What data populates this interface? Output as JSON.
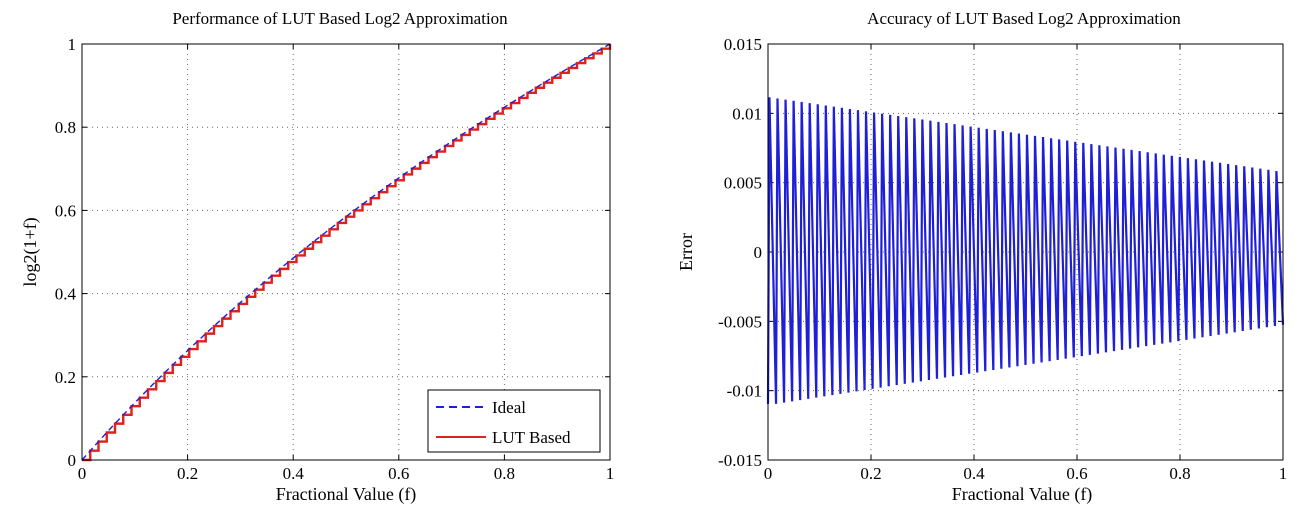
{
  "chart_data": [
    {
      "type": "line",
      "title": "Performance of LUT Based Log2 Approximation",
      "xlabel": "Fractional Value (f)",
      "ylabel": "log2(1+f)",
      "xlim": [
        0,
        1
      ],
      "ylim": [
        0,
        1
      ],
      "x_ticks": [
        0,
        0.2,
        0.4,
        0.6,
        0.8,
        1
      ],
      "x_tick_labels": [
        "0",
        "0.2",
        "0.4",
        "0.6",
        "0.8",
        "1"
      ],
      "y_ticks": [
        0,
        0.2,
        0.4,
        0.6,
        0.8,
        1
      ],
      "y_tick_labels": [
        "0",
        "0.2",
        "0.4",
        "0.6",
        "0.8",
        "1"
      ],
      "grid": true,
      "legend_position": "bottom-right",
      "series": [
        {
          "name": "Ideal",
          "style": "dashed",
          "color": "#1f1fd6",
          "function": "log2(1+f)"
        },
        {
          "name": "LUT Based",
          "style": "solid",
          "color": "#e0201a",
          "function": "step-wise log2(1+f)",
          "steps": 64
        }
      ]
    },
    {
      "type": "line",
      "title": "Accuracy of LUT Based Log2 Approximation",
      "xlabel": "Fractional Value (f)",
      "ylabel": "Error",
      "xlim": [
        0,
        1
      ],
      "ylim": [
        -0.015,
        0.015
      ],
      "x_ticks": [
        0,
        0.2,
        0.4,
        0.6,
        0.8,
        1
      ],
      "x_tick_labels": [
        "0",
        "0.2",
        "0.4",
        "0.6",
        "0.8",
        "1"
      ],
      "y_ticks": [
        -0.015,
        -0.01,
        -0.005,
        0,
        0.005,
        0.01,
        0.015
      ],
      "y_tick_labels": [
        "-0.015",
        "-0.01",
        "-0.005",
        "0",
        "0.005",
        "0.01",
        "0.015"
      ],
      "grid": true,
      "series": [
        {
          "color": "#1f1fd6",
          "oscillations": 64,
          "upper_envelope": [
            [
              0,
              0.0112
            ],
            [
              1,
              0.0058
            ]
          ],
          "lower_envelope": [
            [
              0,
              -0.011
            ],
            [
              1,
              -0.0052
            ]
          ]
        }
      ]
    }
  ]
}
